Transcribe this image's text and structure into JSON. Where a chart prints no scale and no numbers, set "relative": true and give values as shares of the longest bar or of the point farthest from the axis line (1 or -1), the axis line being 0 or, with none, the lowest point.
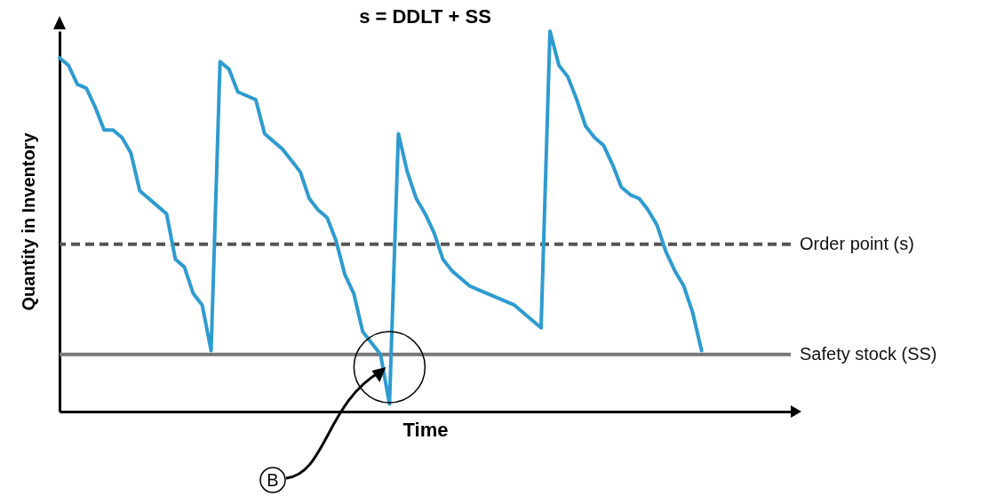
{
  "chart_data": {
    "type": "line",
    "title": "s = DDLT + SS",
    "xlabel": "Time",
    "ylabel": "Quantity in Inventory",
    "relative": true,
    "categories": [
      null,
      null,
      null,
      null,
      null,
      null,
      null,
      null,
      null,
      null,
      null,
      null,
      null,
      null,
      null,
      null,
      null,
      null,
      null,
      null,
      null,
      null,
      null,
      null,
      null,
      null,
      null,
      null,
      null,
      null,
      null,
      null,
      null,
      null,
      null,
      null,
      null,
      null,
      null,
      null,
      null,
      null,
      null,
      null,
      null,
      null,
      null,
      null,
      null,
      null,
      null,
      null,
      null,
      null,
      null,
      null,
      null,
      null,
      null,
      null,
      null,
      null,
      null,
      null,
      null,
      null,
      null,
      null,
      null,
      null,
      null,
      null,
      null,
      null,
      null,
      null,
      null,
      null,
      null,
      null,
      null,
      null,
      null
    ],
    "series": [
      {
        "color": "#2e9bd0",
        "values": [
          0.93,
          0.91,
          0.86,
          0.85,
          0.8,
          0.74,
          0.74,
          0.72,
          0.68,
          0.58,
          0.56,
          0.54,
          0.52,
          0.4,
          0.38,
          0.31,
          0.28,
          0.16,
          0.92,
          0.9,
          0.84,
          0.83,
          0.82,
          0.73,
          0.71,
          0.69,
          0.66,
          0.63,
          0.56,
          0.53,
          0.51,
          0.45,
          0.36,
          0.31,
          0.21,
          0.18,
          0.15,
          0.02,
          0.73,
          0.63,
          0.56,
          0.52,
          0.47,
          0.4,
          0.37,
          0.35,
          0.33,
          0.32,
          0.31,
          0.3,
          0.29,
          0.28,
          0.26,
          0.24,
          0.22,
          1.0,
          0.91,
          0.88,
          0.82,
          0.75,
          0.72,
          0.7,
          0.65,
          0.59,
          0.57,
          0.56,
          0.53,
          0.49,
          0.42,
          0.37,
          0.33,
          0.26,
          0.16,
          null,
          null,
          null,
          null,
          null,
          null,
          null,
          null,
          null,
          null
        ]
      }
    ],
    "ref_lines": [
      {
        "axis": "y",
        "value": 0.44,
        "label": "Order point (s)",
        "color": "#555555",
        "line_style": "dashed"
      },
      {
        "axis": "y",
        "value": 0.15,
        "label": "Safety stock (SS)",
        "color": "#777777",
        "line_style": "solid"
      }
    ],
    "annotations": [
      "B"
    ]
  }
}
